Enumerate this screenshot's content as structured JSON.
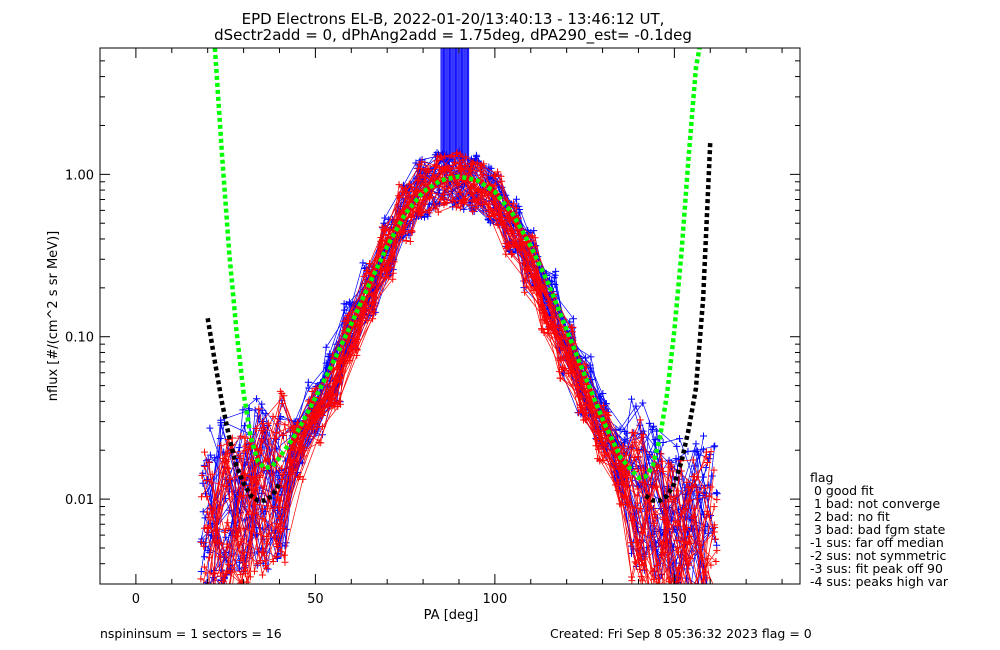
{
  "chart_data": {
    "type": "line",
    "title": "EPD Electrons EL-B, 2022-01-20/13:40:13 - 13:46:12 UT,",
    "subtitle": "dSectr2add = 0, dPhAng2add = 1.75deg, dPA290_est=  -0.1deg",
    "xlabel": "PA [deg]",
    "ylabel": "nflux [#/(cm^2 s sr MeV)]",
    "xlim": [
      -10,
      185
    ],
    "ylim": [
      0.003,
      6.0
    ],
    "yscale": "log",
    "xticks": [
      0,
      50,
      100,
      150
    ],
    "yticks": [
      0.01,
      0.1,
      1.0
    ],
    "ytick_labels": [
      "0.01",
      "0.10",
      "1.00"
    ],
    "grid": false,
    "series": [
      {
        "color": "#0000ff",
        "style": "thin lines with + markers",
        "x": [
          20,
          25,
          30,
          35,
          40,
          45,
          50,
          55,
          60,
          65,
          70,
          75,
          80,
          85,
          90,
          95,
          100,
          105,
          110,
          115,
          120,
          125,
          130,
          135,
          140,
          145,
          150,
          155,
          160
        ],
        "y": [
          0.008,
          0.009,
          0.011,
          0.012,
          0.015,
          0.022,
          0.035,
          0.06,
          0.11,
          0.2,
          0.36,
          0.6,
          0.82,
          0.9,
          0.92,
          0.88,
          0.75,
          0.5,
          0.3,
          0.17,
          0.09,
          0.05,
          0.03,
          0.018,
          0.012,
          0.009,
          0.008,
          0.007,
          0.007
        ]
      },
      {
        "color": "#ff0000",
        "style": "thin lines with + markers",
        "x": [
          20,
          25,
          30,
          35,
          40,
          45,
          50,
          55,
          60,
          65,
          70,
          75,
          80,
          85,
          90,
          95,
          100,
          105,
          110,
          115,
          120,
          125,
          130,
          135,
          140,
          145,
          150,
          155,
          160
        ],
        "y": [
          0.006,
          0.007,
          0.009,
          0.011,
          0.014,
          0.02,
          0.032,
          0.055,
          0.1,
          0.19,
          0.34,
          0.58,
          0.8,
          0.88,
          0.9,
          0.86,
          0.72,
          0.48,
          0.28,
          0.15,
          0.08,
          0.045,
          0.025,
          0.014,
          0.009,
          0.006,
          0.005,
          0.005,
          0.006
        ]
      },
      {
        "color": "#00ff00",
        "style": "thick dotted",
        "x": [
          22,
          24,
          26,
          28,
          30,
          32,
          34,
          36,
          38,
          40,
          45,
          50,
          55,
          60,
          65,
          70,
          75,
          80,
          85,
          90,
          95,
          100,
          105,
          110,
          115,
          120,
          125,
          130,
          135,
          140,
          142,
          144,
          146,
          148,
          150,
          152,
          154,
          156,
          157
        ],
        "y": [
          6.0,
          1.3,
          0.33,
          0.11,
          0.045,
          0.024,
          0.017,
          0.0155,
          0.016,
          0.018,
          0.026,
          0.042,
          0.07,
          0.12,
          0.21,
          0.36,
          0.57,
          0.78,
          0.92,
          0.97,
          0.92,
          0.78,
          0.57,
          0.36,
          0.21,
          0.11,
          0.058,
          0.031,
          0.018,
          0.0135,
          0.0138,
          0.016,
          0.024,
          0.045,
          0.11,
          0.33,
          1.3,
          4.5,
          6.0
        ]
      },
      {
        "color": "#000000",
        "style": "thick dotted",
        "x": [
          20,
          22,
          24,
          26,
          28,
          30,
          32,
          34,
          36,
          38,
          40,
          142,
          144,
          146,
          148,
          150,
          152,
          154,
          156,
          158,
          160
        ],
        "y": [
          0.13,
          0.07,
          0.039,
          0.024,
          0.016,
          0.0125,
          0.0105,
          0.0098,
          0.0098,
          0.0105,
          0.0125,
          0.0105,
          0.0098,
          0.0098,
          0.0105,
          0.0125,
          0.017,
          0.027,
          0.048,
          0.17,
          1.6
        ]
      }
    ],
    "spike": {
      "x_range": [
        85,
        93
      ],
      "y_range": [
        1.25,
        6.0
      ],
      "color": "#0000ff"
    },
    "legend_title": "flag",
    "legend": [
      " 0 good fit",
      " 1 bad: not converge",
      " 2 bad: no fit",
      " 3 bad: bad fgm state",
      "-1 sus: far off median",
      "-2 sus: not symmetric",
      "-3 sus: fit peak off 90",
      "-4 sus: peaks high var"
    ],
    "legend_position": "bottom-right outside plot"
  },
  "footer": {
    "left": "nspininsum =  1  sectors = 16",
    "right": "Created: Fri Sep  8 05:36:32 2023   flag = 0"
  }
}
